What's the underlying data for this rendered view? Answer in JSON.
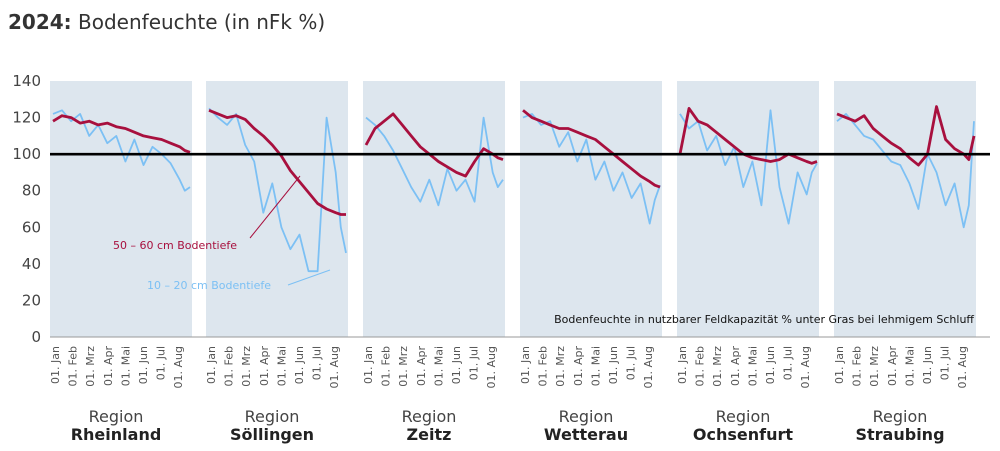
{
  "header": {
    "year": "2024:",
    "title": "Bodenfeuchte (in nFk %)"
  },
  "colors": {
    "deep": "#a8103e",
    "shallow": "#7cc0f4",
    "panel": "#dde6ee",
    "threshold": "#000000"
  },
  "chart_data": {
    "type": "line",
    "title": "2024: Bodenfeuchte (in nFk %)",
    "ylim": [
      0,
      140
    ],
    "yticks": [
      0,
      20,
      40,
      60,
      80,
      100,
      120,
      140
    ],
    "threshold": 100,
    "x_ticks": [
      "01. Jan",
      "01. Feb",
      "01. Mrz",
      "01. Apr",
      "01. Mai",
      "01. Jun",
      "01. Jul",
      "01. Aug"
    ],
    "annotations": {
      "deep": "50 – 60 cm Bodentiefe",
      "shallow": "10 – 20 cm Bodentiefe",
      "note": "Bodenfeuchte in nutzbarer Feldkapazität % unter Gras bei lehmigem Schluff"
    },
    "regions": [
      {
        "label": "Region",
        "name": "Rheinland",
        "deep": [
          [
            0,
            118
          ],
          [
            7,
            121
          ],
          [
            14,
            120
          ],
          [
            21,
            117
          ],
          [
            28,
            118
          ],
          [
            35,
            116
          ],
          [
            42,
            117
          ],
          [
            49,
            115
          ],
          [
            56,
            114
          ],
          [
            63,
            112
          ],
          [
            70,
            110
          ],
          [
            77,
            109
          ],
          [
            84,
            108
          ],
          [
            91,
            106
          ],
          [
            98,
            104
          ],
          [
            102,
            102
          ],
          [
            106,
            101
          ]
        ],
        "shallow": [
          [
            0,
            122
          ],
          [
            7,
            124
          ],
          [
            14,
            118
          ],
          [
            21,
            122
          ],
          [
            28,
            110
          ],
          [
            35,
            116
          ],
          [
            42,
            106
          ],
          [
            49,
            110
          ],
          [
            56,
            96
          ],
          [
            63,
            108
          ],
          [
            70,
            94
          ],
          [
            77,
            104
          ],
          [
            84,
            100
          ],
          [
            91,
            95
          ],
          [
            98,
            86
          ],
          [
            102,
            80
          ],
          [
            106,
            82
          ]
        ]
      },
      {
        "label": "Region",
        "name": "Söllingen",
        "deep": [
          [
            0,
            124
          ],
          [
            7,
            122
          ],
          [
            14,
            120
          ],
          [
            21,
            121
          ],
          [
            28,
            119
          ],
          [
            35,
            114
          ],
          [
            42,
            110
          ],
          [
            49,
            105
          ],
          [
            56,
            99
          ],
          [
            63,
            91
          ],
          [
            70,
            85
          ],
          [
            77,
            79
          ],
          [
            84,
            73
          ],
          [
            91,
            70
          ],
          [
            98,
            68
          ],
          [
            102,
            67
          ],
          [
            106,
            67
          ]
        ],
        "shallow": [
          [
            0,
            125
          ],
          [
            7,
            120
          ],
          [
            14,
            116
          ],
          [
            21,
            122
          ],
          [
            28,
            105
          ],
          [
            35,
            96
          ],
          [
            42,
            68
          ],
          [
            49,
            84
          ],
          [
            56,
            60
          ],
          [
            63,
            48
          ],
          [
            70,
            56
          ],
          [
            77,
            36
          ],
          [
            84,
            36
          ],
          [
            91,
            120
          ],
          [
            98,
            90
          ],
          [
            102,
            60
          ],
          [
            106,
            46
          ]
        ]
      },
      {
        "label": "Region",
        "name": "Zeitz",
        "deep": [
          [
            0,
            105
          ],
          [
            7,
            114
          ],
          [
            14,
            118
          ],
          [
            21,
            122
          ],
          [
            28,
            116
          ],
          [
            35,
            110
          ],
          [
            42,
            104
          ],
          [
            49,
            100
          ],
          [
            56,
            96
          ],
          [
            63,
            93
          ],
          [
            70,
            90
          ],
          [
            77,
            88
          ],
          [
            84,
            96
          ],
          [
            91,
            103
          ],
          [
            98,
            100
          ],
          [
            102,
            98
          ],
          [
            106,
            97
          ]
        ],
        "shallow": [
          [
            0,
            120
          ],
          [
            7,
            116
          ],
          [
            14,
            110
          ],
          [
            21,
            102
          ],
          [
            28,
            92
          ],
          [
            35,
            82
          ],
          [
            42,
            74
          ],
          [
            49,
            86
          ],
          [
            56,
            72
          ],
          [
            63,
            92
          ],
          [
            70,
            80
          ],
          [
            77,
            86
          ],
          [
            84,
            74
          ],
          [
            91,
            120
          ],
          [
            98,
            90
          ],
          [
            102,
            82
          ],
          [
            106,
            86
          ]
        ]
      },
      {
        "label": "Region",
        "name": "Wetterau",
        "deep": [
          [
            0,
            124
          ],
          [
            7,
            120
          ],
          [
            14,
            118
          ],
          [
            21,
            116
          ],
          [
            28,
            114
          ],
          [
            35,
            114
          ],
          [
            42,
            112
          ],
          [
            49,
            110
          ],
          [
            56,
            108
          ],
          [
            63,
            104
          ],
          [
            70,
            100
          ],
          [
            77,
            96
          ],
          [
            84,
            92
          ],
          [
            91,
            88
          ],
          [
            98,
            85
          ],
          [
            102,
            83
          ],
          [
            106,
            82
          ]
        ],
        "shallow": [
          [
            0,
            120
          ],
          [
            7,
            122
          ],
          [
            14,
            116
          ],
          [
            21,
            118
          ],
          [
            28,
            104
          ],
          [
            35,
            112
          ],
          [
            42,
            96
          ],
          [
            49,
            108
          ],
          [
            56,
            86
          ],
          [
            63,
            96
          ],
          [
            70,
            80
          ],
          [
            77,
            90
          ],
          [
            84,
            76
          ],
          [
            91,
            84
          ],
          [
            98,
            62
          ],
          [
            102,
            75
          ],
          [
            106,
            83
          ]
        ]
      },
      {
        "label": "Region",
        "name": "Ochsenfurt",
        "deep": [
          [
            0,
            100
          ],
          [
            7,
            125
          ],
          [
            14,
            118
          ],
          [
            21,
            116
          ],
          [
            28,
            112
          ],
          [
            35,
            108
          ],
          [
            42,
            104
          ],
          [
            49,
            100
          ],
          [
            56,
            98
          ],
          [
            63,
            97
          ],
          [
            70,
            96
          ],
          [
            77,
            97
          ],
          [
            84,
            100
          ],
          [
            91,
            98
          ],
          [
            98,
            96
          ],
          [
            102,
            95
          ],
          [
            106,
            96
          ]
        ],
        "shallow": [
          [
            0,
            122
          ],
          [
            7,
            114
          ],
          [
            14,
            118
          ],
          [
            21,
            102
          ],
          [
            28,
            110
          ],
          [
            35,
            94
          ],
          [
            42,
            104
          ],
          [
            49,
            82
          ],
          [
            56,
            96
          ],
          [
            63,
            72
          ],
          [
            70,
            124
          ],
          [
            77,
            82
          ],
          [
            84,
            62
          ],
          [
            91,
            90
          ],
          [
            98,
            78
          ],
          [
            102,
            90
          ],
          [
            106,
            95
          ]
        ]
      },
      {
        "label": "Region",
        "name": "Straubing",
        "deep": [
          [
            0,
            122
          ],
          [
            7,
            120
          ],
          [
            14,
            118
          ],
          [
            21,
            121
          ],
          [
            28,
            114
          ],
          [
            35,
            110
          ],
          [
            42,
            106
          ],
          [
            49,
            103
          ],
          [
            56,
            98
          ],
          [
            63,
            94
          ],
          [
            70,
            100
          ],
          [
            77,
            126
          ],
          [
            84,
            108
          ],
          [
            91,
            103
          ],
          [
            98,
            100
          ],
          [
            102,
            97
          ],
          [
            106,
            110
          ]
        ],
        "shallow": [
          [
            0,
            118
          ],
          [
            7,
            122
          ],
          [
            14,
            116
          ],
          [
            21,
            110
          ],
          [
            28,
            108
          ],
          [
            35,
            102
          ],
          [
            42,
            96
          ],
          [
            49,
            94
          ],
          [
            56,
            84
          ],
          [
            63,
            70
          ],
          [
            70,
            100
          ],
          [
            77,
            90
          ],
          [
            84,
            72
          ],
          [
            91,
            84
          ],
          [
            98,
            60
          ],
          [
            102,
            72
          ],
          [
            106,
            118
          ]
        ]
      }
    ]
  }
}
